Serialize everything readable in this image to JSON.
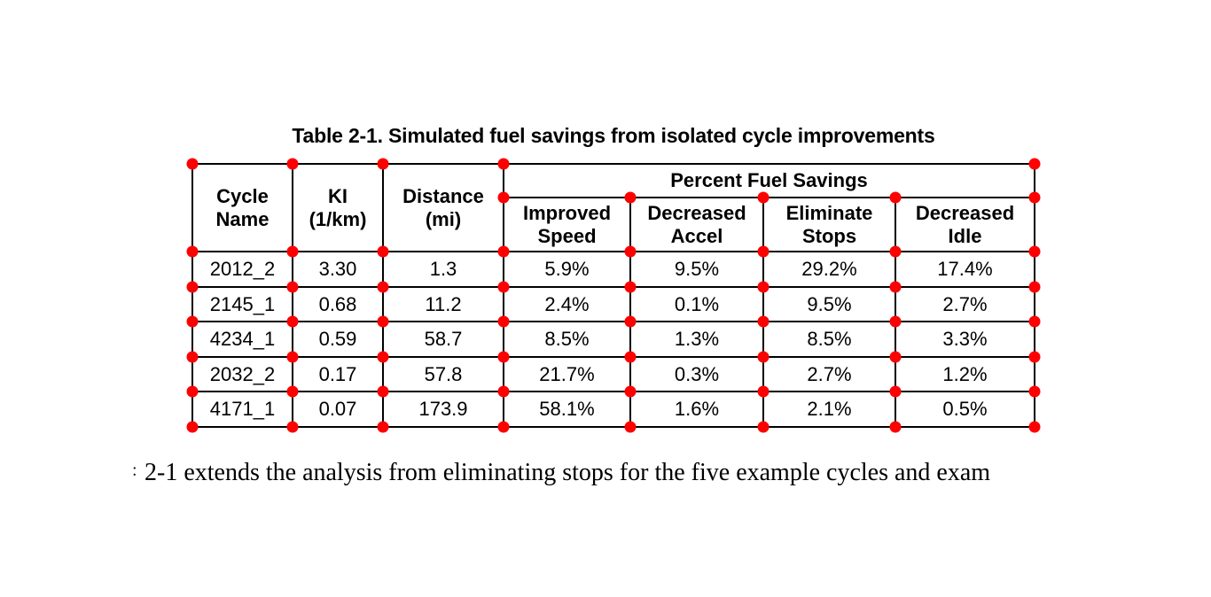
{
  "title": "Table 2-1. Simulated fuel savings from isolated cycle improvements",
  "caption": {
    "fragment": ":",
    "text": "2-1 extends the analysis from eliminating stops for the five example cycles and exam"
  },
  "table": {
    "group_header": "Percent Fuel Savings",
    "col_headers": [
      {
        "line1": "Cycle",
        "line2": "Name"
      },
      {
        "line1": "KI",
        "line2": "(1/km)"
      },
      {
        "line1": "Distance",
        "line2": "(mi)"
      },
      {
        "line1": "Improved",
        "line2": "Speed"
      },
      {
        "line1": "Decreased",
        "line2": "Accel"
      },
      {
        "line1": "Eliminate",
        "line2": "Stops"
      },
      {
        "line1": "Decreased",
        "line2": "Idle"
      }
    ],
    "rows": [
      {
        "cycle_name": "2012_2",
        "ki": "3.30",
        "distance": "1.3",
        "improved_speed": "5.9%",
        "decreased_accel": "9.5%",
        "eliminate_stops": "29.2%",
        "decreased_idle": "17.4%"
      },
      {
        "cycle_name": "2145_1",
        "ki": "0.68",
        "distance": "11.2",
        "improved_speed": "2.4%",
        "decreased_accel": "0.1%",
        "eliminate_stops": "9.5%",
        "decreased_idle": "2.7%"
      },
      {
        "cycle_name": "4234_1",
        "ki": "0.59",
        "distance": "58.7",
        "improved_speed": "8.5%",
        "decreased_accel": "1.3%",
        "eliminate_stops": "8.5%",
        "decreased_idle": "3.3%"
      },
      {
        "cycle_name": "2032_2",
        "ki": "0.17",
        "distance": "57.8",
        "improved_speed": "21.7%",
        "decreased_accel": "0.3%",
        "eliminate_stops": "2.7%",
        "decreased_idle": "1.2%"
      },
      {
        "cycle_name": "4171_1",
        "ki": "0.07",
        "distance": "173.9",
        "improved_speed": "58.1%",
        "decreased_accel": "1.6%",
        "eliminate_stops": "2.1%",
        "decreased_idle": "0.5%"
      }
    ]
  },
  "colors": {
    "marker_dot": "#ff0000",
    "table_border": "#000000",
    "text": "#000000",
    "background": "#ffffff"
  }
}
